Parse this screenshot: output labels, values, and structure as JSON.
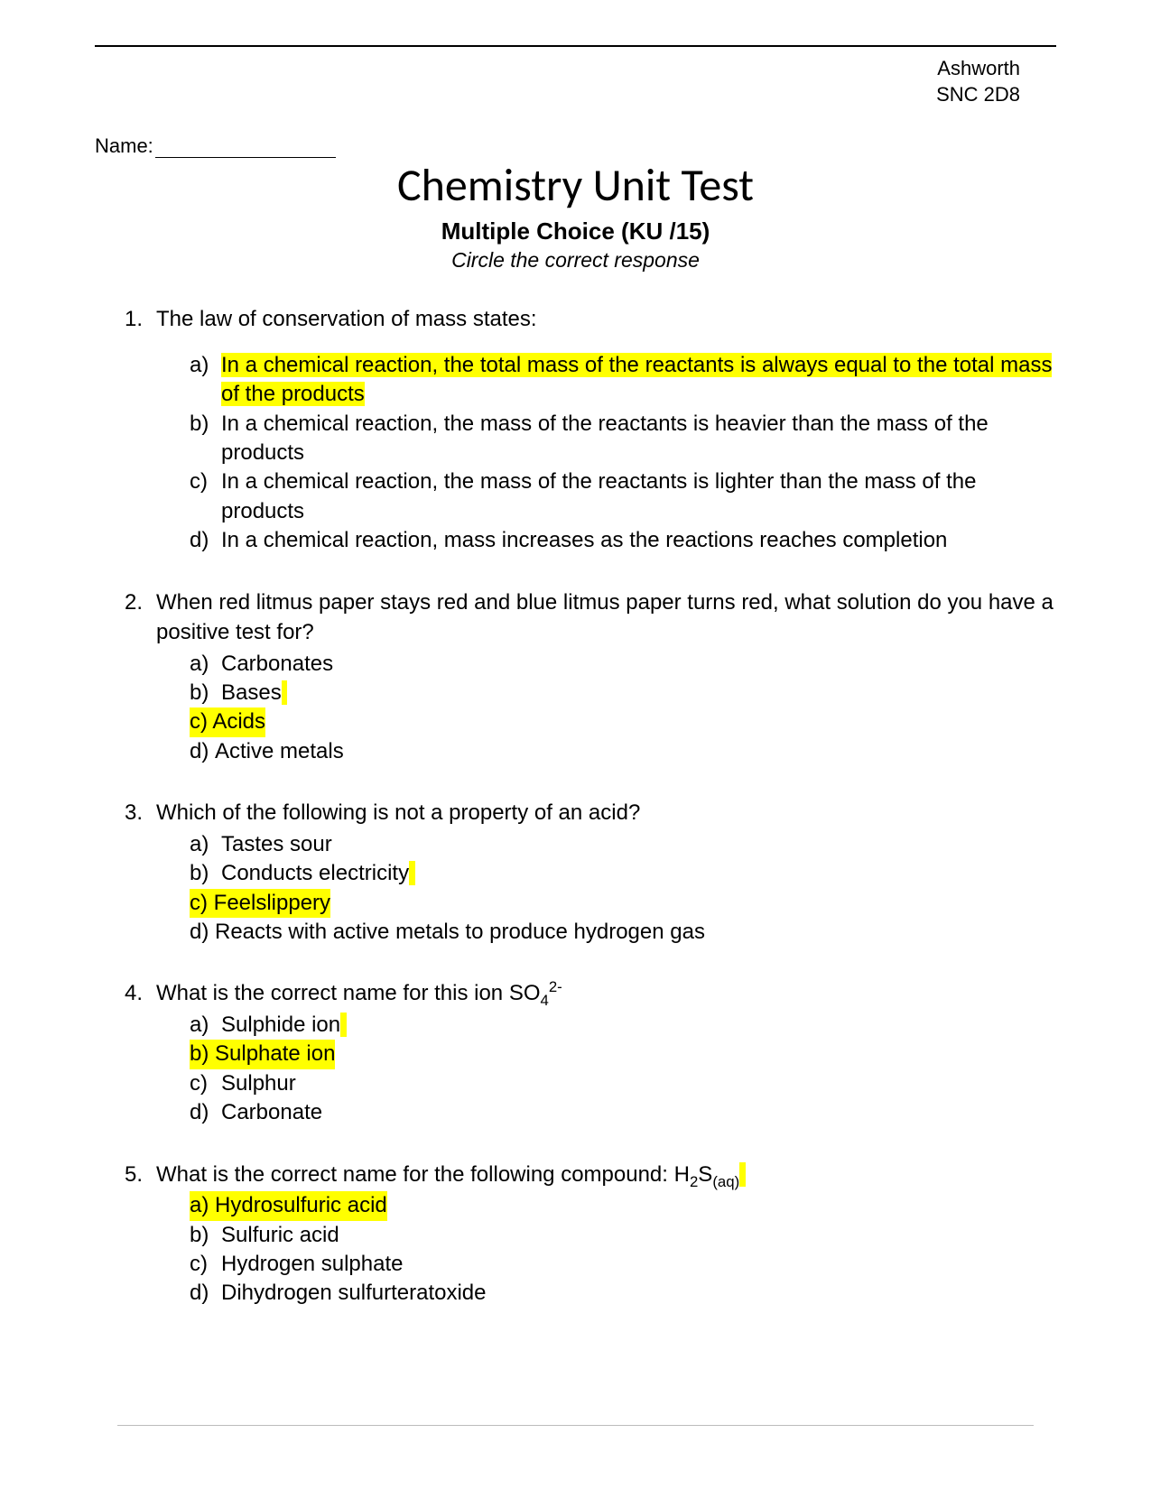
{
  "header": {
    "teacher": "Ashworth",
    "course": "SNC 2D8",
    "name_label": "Name:"
  },
  "title": "Chemistry Unit Test",
  "subtitle": "Multiple Choice (KU    /15)",
  "instruction": "Circle the correct response",
  "highlight_color": "#ffff00",
  "questions": [
    {
      "num": "1.",
      "text": "The law of conservation of mass states:",
      "spaced_options": true,
      "options": [
        {
          "letter": "a)",
          "text": "In a chemical reaction, the total mass of the reactants is always equal to the total mass of the products",
          "highlighted": true,
          "highlight_text_only": true
        },
        {
          "letter": "b)",
          "text": "In a chemical reaction, the mass of the reactants is heavier than the mass of the products"
        },
        {
          "letter": "c)",
          "text": "In a chemical reaction, the mass of the reactants is lighter than the mass of the products"
        },
        {
          "letter": "d)",
          "text": "In a chemical reaction, mass increases as the reactions reaches completion"
        }
      ]
    },
    {
      "num": "2.",
      "text": "When red litmus paper stays red and blue litmus paper turns red, what solution do you have a positive test for?",
      "options": [
        {
          "letter": "a)",
          "text": "Carbonates"
        },
        {
          "letter": "b)",
          "text": "Bases",
          "trailing_highlight": true
        },
        {
          "letter": "c)",
          "text": "Acids",
          "highlighted": true
        },
        {
          "letter": "d)",
          "text": "Active metals",
          "tight_letter": true
        }
      ]
    },
    {
      "num": "3.",
      "text": "Which of the following is not a property of an acid?",
      "options": [
        {
          "letter": "a)",
          "text": "Tastes sour"
        },
        {
          "letter": "b)",
          "text": "Conducts electricity",
          "trailing_highlight": true
        },
        {
          "letter": "c)",
          "text": "Feel slippery",
          "highlighted": true,
          "tight_letter": true,
          "collapse_space": true
        },
        {
          "letter": "d)",
          "text": "Reacts with active metals to produce hydrogen gas",
          "tight_letter": true
        }
      ]
    },
    {
      "num": "4.",
      "text_html": "What is the correct name for this ion SO<span class=\"sub\">4</span><span class=\"sup\">2-</span>",
      "options": [
        {
          "letter": "a)",
          "text": "Sulphide ion",
          "trailing_highlight": true
        },
        {
          "letter": "b)",
          "text": "Sulphate ion",
          "highlighted": true,
          "tight_letter": true
        },
        {
          "letter": "c)",
          "text": "Sulphur"
        },
        {
          "letter": "d)",
          "text": "Carbonate"
        }
      ]
    },
    {
      "num": "5.",
      "text_html": "What is the correct name for the following compound: H<span class=\"sub\">2</span>S<span class=\"sub\">(aq)</span>",
      "trailing_highlight": true,
      "options": [
        {
          "letter": "a)",
          "text": "Hydrosulfuric acid",
          "highlighted": true,
          "tight_letter": true
        },
        {
          "letter": "b)",
          "text": "Sulfuric acid"
        },
        {
          "letter": "c)",
          "text": "Hydrogen sulphate"
        },
        {
          "letter": "d)",
          "text": "Dihydrogen sulfurteratoxide"
        }
      ]
    }
  ]
}
